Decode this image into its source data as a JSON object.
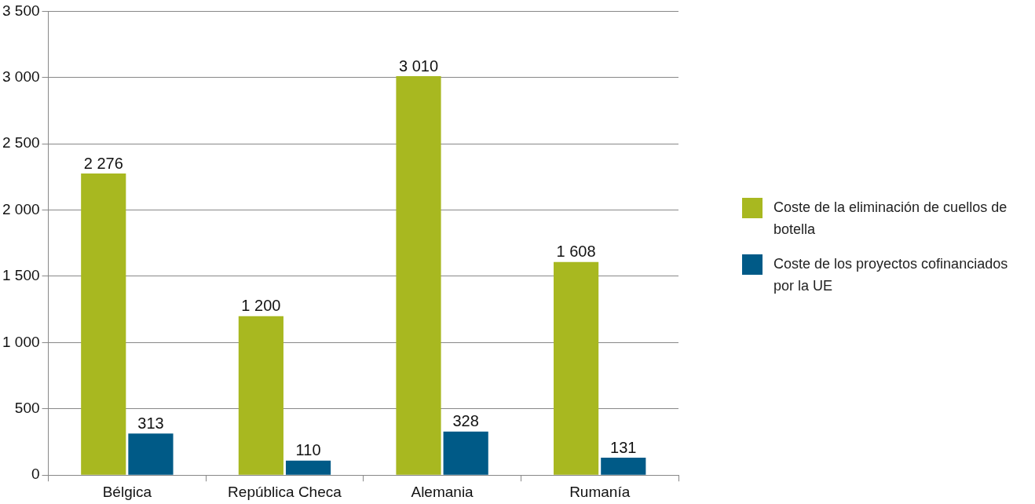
{
  "chart_data": {
    "type": "bar",
    "categories": [
      "Bélgica",
      "República Checa",
      "Alemania",
      "Rumanía"
    ],
    "series": [
      {
        "name": "Coste de la eliminación de cuellos de botella",
        "color": "#a8b820",
        "values": [
          2276,
          1200,
          3010,
          1608
        ],
        "value_labels": [
          "2 276",
          "1 200",
          "3 010",
          "1 608"
        ]
      },
      {
        "name": "Coste de los proyectos cofinanciados por la UE",
        "color": "#005a87",
        "values": [
          313,
          110,
          328,
          131
        ],
        "value_labels": [
          "313",
          "110",
          "328",
          "131"
        ]
      }
    ],
    "ylim": [
      0,
      3500
    ],
    "yticks": [
      {
        "value": 0,
        "label": "0"
      },
      {
        "value": 500,
        "label": "500"
      },
      {
        "value": 1000,
        "label": "1 000"
      },
      {
        "value": 1500,
        "label": "1 500"
      },
      {
        "value": 2000,
        "label": "2 000"
      },
      {
        "value": 2500,
        "label": "2 500"
      },
      {
        "value": 3000,
        "label": "3 000"
      },
      {
        "value": 3500,
        "label": "3 500"
      }
    ],
    "grid": "y",
    "legend": "right"
  }
}
